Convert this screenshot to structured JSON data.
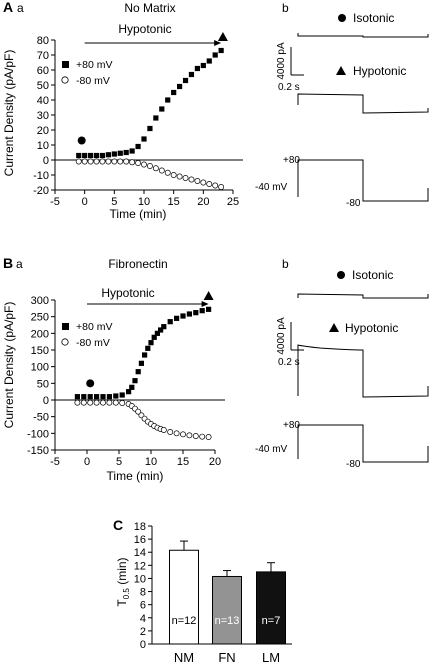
{
  "panels": {
    "A": {
      "letter": "A",
      "sub_a": "a",
      "sub_b": "b",
      "title": "No Matrix",
      "bar_label": "Hypotonic",
      "legend": {
        "pos": "+80 mV",
        "neg": "-80 mV"
      },
      "traces": {
        "isotonic_label": "Isotonic",
        "hypotonic_label": "Hypotonic",
        "scale_current": "4000 pA",
        "scale_time": "0.2 s",
        "v_hold": "-40 mV",
        "v_pos": "+80",
        "v_neg": "-80"
      }
    },
    "B": {
      "letter": "B",
      "sub_a": "a",
      "sub_b": "b",
      "title": "Fibronectin",
      "bar_label": "Hypotonic",
      "legend": {
        "pos": "+80 mV",
        "neg": "-80 mV"
      },
      "traces": {
        "isotonic_label": "Isotonic",
        "hypotonic_label": "Hypotonic",
        "scale_current": "4000 pA",
        "scale_time": "0.2 s",
        "v_hold": "-40 mV",
        "v_pos": "+80",
        "v_neg": "-80"
      }
    },
    "C": {
      "letter": "C"
    }
  },
  "chart_data": [
    {
      "id": "A",
      "type": "scatter",
      "title": "No Matrix",
      "xlabel": "Time (min)",
      "ylabel": "Current Density (pA/pF)",
      "xlim": [
        -5,
        25
      ],
      "ylim": [
        -20,
        80
      ],
      "xticks": [
        -5,
        0,
        5,
        10,
        15,
        20,
        25
      ],
      "yticks": [
        -20,
        -10,
        0,
        10,
        20,
        30,
        40,
        50,
        60,
        70,
        80
      ],
      "hypotonic_start": 0,
      "hypotonic_end": 23,
      "markers": {
        "isotonic_time": -0.5,
        "isotonic_value": 13,
        "hypotonic_time": 23.3,
        "hypotonic_value": 82
      },
      "series": [
        {
          "name": "+80 mV",
          "marker": "square-filled",
          "x": [
            -1,
            0,
            1,
            2,
            3,
            4,
            5,
            6,
            7,
            8,
            9,
            10,
            11,
            12,
            13,
            14,
            15,
            16,
            17,
            18,
            19,
            20,
            21,
            22,
            23
          ],
          "y": [
            3,
            3,
            3,
            3,
            3,
            3.5,
            4,
            4.5,
            5,
            6,
            9,
            14,
            21,
            28,
            34,
            40,
            45,
            49,
            53,
            57,
            61,
            63,
            66,
            70,
            73
          ]
        },
        {
          "name": "-80 mV",
          "marker": "circle-open",
          "x": [
            -1,
            0,
            1,
            2,
            3,
            4,
            5,
            6,
            7,
            8,
            9,
            10,
            11,
            12,
            13,
            14,
            15,
            16,
            17,
            18,
            19,
            20,
            21,
            22,
            23
          ],
          "y": [
            -1,
            -1,
            -1,
            -1,
            -1,
            -1,
            -1,
            -1,
            -1,
            -1.5,
            -2,
            -3,
            -4,
            -5.5,
            -7,
            -8.5,
            -10,
            -11,
            -12,
            -13,
            -14,
            -15,
            -16,
            -17,
            -18
          ]
        }
      ]
    },
    {
      "id": "B",
      "type": "scatter",
      "title": "Fibronectin",
      "xlabel": "Time (min)",
      "ylabel": "Current Density (pA/pF)",
      "xlim": [
        -5,
        20
      ],
      "ylim": [
        -150,
        300
      ],
      "xticks": [
        -5,
        0,
        5,
        10,
        15,
        20
      ],
      "yticks": [
        -150,
        -100,
        -50,
        0,
        50,
        100,
        150,
        200,
        250,
        300
      ],
      "hypotonic_start": 0,
      "hypotonic_end": 19,
      "markers": {
        "isotonic_time": 0.5,
        "isotonic_value": 50,
        "hypotonic_time": 19,
        "hypotonic_value": 312
      },
      "series": [
        {
          "name": "+80 mV",
          "marker": "square-filled",
          "x": [
            -1.5,
            -0.5,
            0.5,
            1.5,
            2.5,
            3.5,
            4.5,
            5.5,
            6.5,
            7,
            7.5,
            8,
            8.5,
            9,
            9.5,
            10,
            10.5,
            11,
            11.5,
            12,
            13,
            14,
            15,
            16,
            17,
            18,
            19
          ],
          "y": [
            10,
            10,
            10,
            10,
            10,
            10,
            12,
            15,
            25,
            38,
            58,
            85,
            110,
            135,
            155,
            172,
            188,
            200,
            210,
            220,
            235,
            245,
            252,
            258,
            262,
            268,
            272
          ]
        },
        {
          "name": "-80 mV",
          "marker": "circle-open",
          "x": [
            -1.5,
            -0.5,
            0.5,
            1.5,
            2.5,
            3.5,
            4.5,
            5.5,
            6.5,
            7,
            7.5,
            8,
            8.5,
            9,
            9.5,
            10,
            10.5,
            11,
            11.5,
            12,
            13,
            14,
            15,
            16,
            17,
            18,
            19
          ],
          "y": [
            -8,
            -8,
            -8,
            -8,
            -8,
            -8,
            -8,
            -9,
            -12,
            -18,
            -26,
            -35,
            -46,
            -56,
            -65,
            -72,
            -78,
            -83,
            -87,
            -90,
            -96,
            -100,
            -103,
            -106,
            -108,
            -110,
            -111
          ]
        }
      ]
    },
    {
      "id": "C",
      "type": "bar",
      "ylabel": "T0.5 (min)",
      "ylim": [
        0,
        18
      ],
      "yticks": [
        0,
        2,
        4,
        6,
        8,
        10,
        12,
        14,
        16,
        18
      ],
      "categories": [
        "NM",
        "FN",
        "LM"
      ],
      "values": [
        14.3,
        10.3,
        11.0
      ],
      "errors": [
        1.4,
        0.9,
        1.4
      ],
      "bar_colors": [
        "#ffffff",
        "#939393",
        "#111111"
      ],
      "n_labels": [
        "n=12",
        "n=13",
        "n=7"
      ]
    }
  ]
}
